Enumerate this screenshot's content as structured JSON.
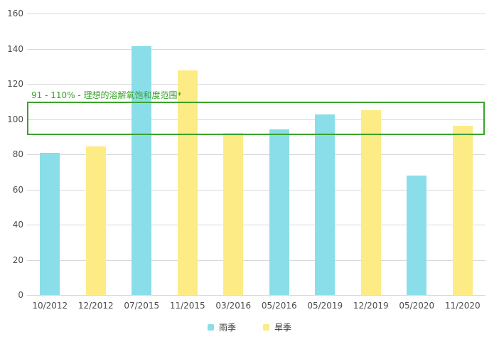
{
  "chart_data": {
    "type": "bar",
    "title": "",
    "categories": [
      "10/2012",
      "12/2012",
      "07/2015",
      "11/2015",
      "03/2016",
      "05/2016",
      "05/2019",
      "12/2019",
      "05/2020",
      "11/2020"
    ],
    "series": [
      {
        "name": "雨季",
        "color": "#8adee9",
        "values": [
          81,
          null,
          141.5,
          null,
          null,
          94,
          102.5,
          null,
          68,
          null
        ]
      },
      {
        "name": "旱季",
        "color": "#fdec85",
        "values": [
          null,
          84.5,
          null,
          127.5,
          92,
          null,
          null,
          105,
          null,
          96
        ]
      }
    ],
    "ylim": [
      0,
      160
    ],
    "ytick_step": 20,
    "ytick_labels": [
      "0",
      "20",
      "40",
      "60",
      "80",
      "100",
      "120",
      "140",
      "160"
    ],
    "grid": "horizontal",
    "gridline_color": "#d9d9d9",
    "axis_label_color": "#4d4d4d",
    "legend_position": "bottom",
    "annotation": {
      "label": "91 - 110% - 理想的溶解氧饱和度范围*",
      "band_min": 91,
      "band_max": 110,
      "color": "#3aa32c"
    }
  }
}
